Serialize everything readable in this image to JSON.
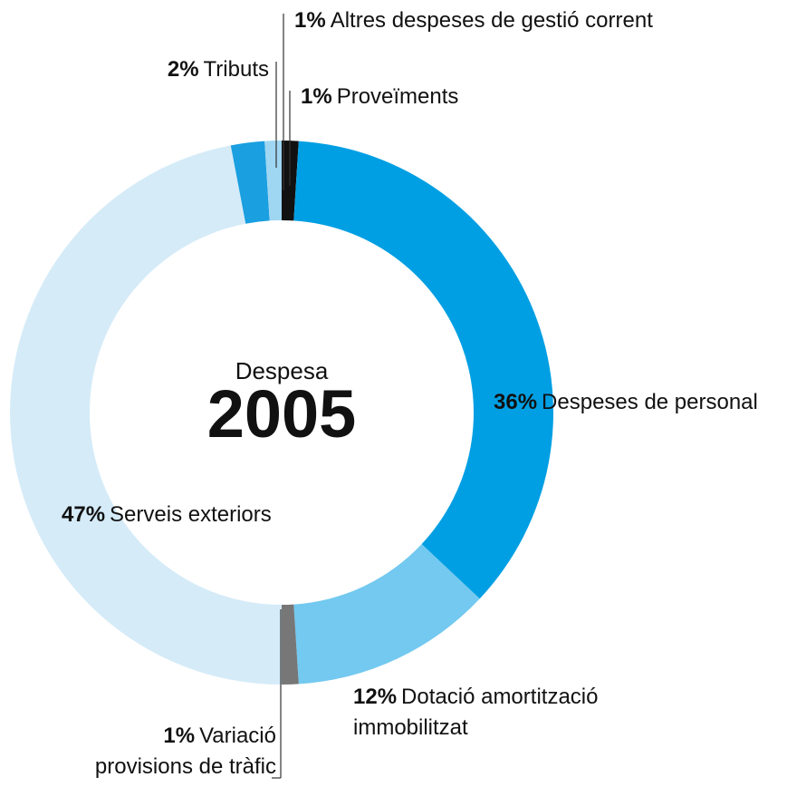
{
  "chart_data": {
    "type": "donut",
    "subtitle": "Despesa",
    "title": "2005",
    "categories": [
      "Proveïments",
      "Despeses de personal",
      "Dotació amortització immobilitzat",
      "Variació provisions de tràfic",
      "Serveis exteriors",
      "Tributs",
      "Altres despeses de gestió corrent"
    ],
    "values": [
      1,
      36,
      12,
      1,
      47,
      2,
      1
    ],
    "value_labels": [
      "1%",
      "36%",
      "12%",
      "1%",
      "47%",
      "2%",
      "1%"
    ],
    "colors": [
      "#111111",
      "#009fe3",
      "#73c9ef",
      "#777777",
      "#d5ebf8",
      "#1a9fe0",
      "#9fd6f2"
    ]
  }
}
